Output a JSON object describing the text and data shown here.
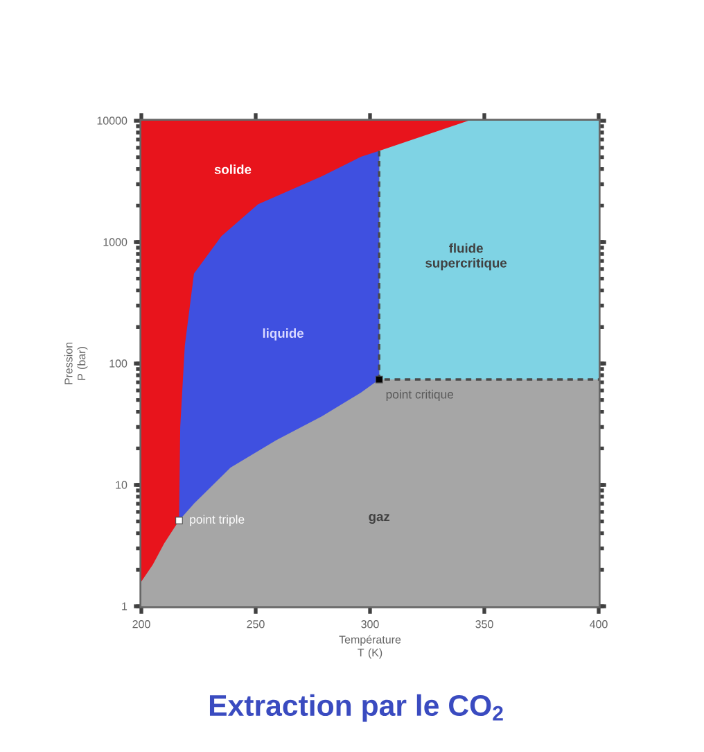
{
  "chart_data": {
    "type": "area",
    "title": "Extraction par le CO$_{2}$",
    "xlabel": "Température T (K)",
    "ylabel": "Pression P (bar)",
    "log": "y",
    "xlim": [
      200,
      400
    ],
    "ylim": [
      1,
      10000
    ],
    "xticks": [
      200,
      250,
      300,
      350,
      400
    ],
    "yticks": [
      1,
      10,
      100,
      1000,
      10000
    ],
    "series": [
      {
        "color": "#e8141c",
        "x": [
          200,
          400
        ],
        "values": [
          10000,
          10000
        ]
      },
      {
        "color": "#7fd3e4",
        "x": [
          304,
          343,
          400
        ],
        "values": [
          5650,
          10000,
          10000
        ]
      },
      {
        "color": "#3f50e0",
        "x": [
          216.5,
          217,
          219,
          223,
          235,
          251,
          279,
          296,
          304
        ],
        "values": [
          5.1,
          30,
          140,
          550,
          1120,
          2050,
          3490,
          5040,
          5650
        ]
      },
      {
        "color": "#a6a6a6",
        "x": [
          200,
          205,
          210,
          216.5,
          223,
          239,
          259,
          279,
          296,
          304,
          400
        ],
        "values": [
          1.6,
          2.2,
          3.3,
          5.1,
          7,
          13.9,
          23.4,
          36.8,
          57.5,
          73.8,
          73.8
        ]
      },
      {
        "type": "line",
        "line_style": "dashed",
        "color": "#4a4a4a",
        "x": [
          304,
          304,
          400
        ],
        "values": [
          5650,
          73.8,
          73.8
        ]
      },
      {
        "type": "scatter",
        "marker": "square",
        "color": "#ffffff",
        "x": [
          216.5
        ],
        "values": [
          5.1
        ]
      },
      {
        "type": "scatter",
        "marker": "square",
        "color": "#000000",
        "x": [
          304
        ],
        "values": [
          73.8
        ]
      }
    ],
    "annotations": [
      "solide",
      "liquide",
      "fluide supercritique",
      "gaz",
      {
        "text": "point triple",
        "x": 216.5,
        "y": 5.1
      },
      {
        "text": "point critique",
        "x": 304,
        "y": 73.8
      }
    ]
  }
}
